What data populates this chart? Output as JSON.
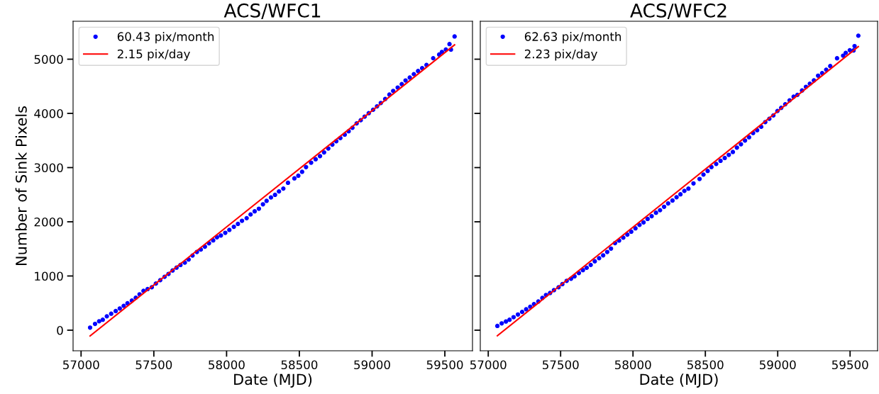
{
  "chart_data": [
    {
      "type": "scatter",
      "title": "ACS/WFC1",
      "xlabel": "Date (MJD)",
      "ylabel": "Number of Sink Pixels",
      "xlim": [
        56945,
        59690
      ],
      "xticks": [
        57000,
        57500,
        58000,
        58500,
        59000,
        59500
      ],
      "ylim": [
        -380,
        5700
      ],
      "yticks": [
        0,
        1000,
        2000,
        3000,
        4000,
        5000
      ],
      "legend": "top left",
      "grid": false,
      "series": [
        {
          "name": "60.43 pix/month",
          "type": "scatter",
          "marker": "circle",
          "color": "#0000ff",
          "x": [
            57062,
            57096,
            57124,
            57149,
            57177,
            57207,
            57238,
            57266,
            57293,
            57319,
            57349,
            57376,
            57402,
            57429,
            57457,
            57486,
            57514,
            57544,
            57574,
            57601,
            57629,
            57656,
            57683,
            57713,
            57739,
            57766,
            57796,
            57823,
            57851,
            57879,
            57908,
            57934,
            57961,
            57991,
            58019,
            58050,
            58078,
            58106,
            58138,
            58165,
            58193,
            58222,
            58250,
            58275,
            58305,
            58333,
            58360,
            58390,
            58422,
            58466,
            58493,
            58519,
            58546,
            58581,
            58612,
            58642,
            58670,
            58699,
            58727,
            58754,
            58782,
            58812,
            58839,
            58865,
            58894,
            58922,
            58949,
            58977,
            59007,
            59034,
            59060,
            59090,
            59119,
            59145,
            59176,
            59204,
            59230,
            59259,
            59287,
            59316,
            59344,
            59374,
            59420,
            59461,
            59480,
            59507,
            59532,
            59542,
            59567
          ],
          "values": [
            48,
            116,
            164,
            193,
            256,
            304,
            353,
            401,
            449,
            497,
            546,
            599,
            662,
            725,
            758,
            792,
            860,
            923,
            985,
            1038,
            1101,
            1154,
            1203,
            1246,
            1304,
            1377,
            1444,
            1488,
            1541,
            1604,
            1657,
            1715,
            1748,
            1796,
            1850,
            1908,
            1961,
            2019,
            2067,
            2135,
            2193,
            2241,
            2323,
            2386,
            2449,
            2497,
            2560,
            2613,
            2719,
            2801,
            2850,
            2922,
            3009,
            3091,
            3154,
            3212,
            3280,
            3352,
            3424,
            3487,
            3545,
            3608,
            3671,
            3734,
            3816,
            3874,
            3941,
            4004,
            4067,
            4130,
            4192,
            4265,
            4347,
            4415,
            4477,
            4540,
            4608,
            4661,
            4724,
            4782,
            4835,
            4893,
            5018,
            5086,
            5134,
            5178,
            5279,
            5178,
            5419
          ]
        },
        {
          "name": "2.15 pix/day",
          "type": "line",
          "marker": "none",
          "line_style": "solid",
          "color": "#ff0000",
          "x": [
            57062,
            59567
          ],
          "values": [
            -106,
            5265
          ]
        }
      ]
    },
    {
      "type": "scatter",
      "title": "ACS/WFC2",
      "xlabel": "Date (MJD)",
      "xlim": [
        56945,
        59690
      ],
      "xticks": [
        57000,
        57500,
        58000,
        58500,
        59000,
        59500
      ],
      "ylim": [
        -380,
        5700
      ],
      "yticks": [
        0,
        1000,
        2000,
        3000,
        4000,
        5000
      ],
      "tick_labels": "x",
      "legend": "top left",
      "grid": false,
      "series": [
        {
          "name": "62.63 pix/month",
          "type": "scatter",
          "marker": "circle",
          "color": "#0000ff",
          "x": [
            57063,
            57093,
            57122,
            57147,
            57175,
            57205,
            57234,
            57262,
            57290,
            57316,
            57346,
            57374,
            57399,
            57427,
            57454,
            57486,
            57512,
            57542,
            57572,
            57596,
            57626,
            57654,
            57680,
            57708,
            57736,
            57766,
            57794,
            57822,
            57848,
            57876,
            57904,
            57933,
            57961,
            57988,
            58017,
            58045,
            58073,
            58101,
            58129,
            58159,
            58187,
            58215,
            58243,
            58273,
            58301,
            58328,
            58355,
            58383,
            58418,
            58460,
            58487,
            58516,
            58542,
            58575,
            58605,
            58634,
            58662,
            58690,
            58718,
            58746,
            58774,
            58802,
            58830,
            58858,
            58886,
            58914,
            58942,
            58970,
            58998,
            59024,
            59052,
            59082,
            59110,
            59136,
            59168,
            59195,
            59222,
            59250,
            59279,
            59307,
            59335,
            59363,
            59410,
            59452,
            59470,
            59498,
            59524,
            59531,
            59557
          ],
          "values": [
            78,
            126,
            160,
            193,
            241,
            289,
            337,
            385,
            432,
            481,
            529,
            595,
            649,
            686,
            739,
            792,
            850,
            911,
            950,
            993,
            1055,
            1108,
            1151,
            1204,
            1271,
            1328,
            1381,
            1443,
            1505,
            1607,
            1654,
            1707,
            1764,
            1817,
            1879,
            1942,
            1989,
            2052,
            2104,
            2167,
            2214,
            2277,
            2339,
            2392,
            2454,
            2507,
            2570,
            2612,
            2708,
            2790,
            2871,
            2938,
            3010,
            3067,
            3125,
            3177,
            3235,
            3288,
            3369,
            3431,
            3499,
            3560,
            3638,
            3690,
            3753,
            3839,
            3900,
            3963,
            4044,
            4102,
            4169,
            4241,
            4308,
            4342,
            4423,
            4490,
            4548,
            4609,
            4696,
            4744,
            4806,
            4873,
            5017,
            5065,
            5117,
            5166,
            5161,
            5242,
            5434
          ]
        },
        {
          "name": "2.23 pix/day",
          "type": "line",
          "marker": "none",
          "line_style": "solid",
          "color": "#ff0000",
          "x": [
            57063,
            59557
          ],
          "values": [
            -104,
            5232
          ]
        }
      ]
    }
  ]
}
